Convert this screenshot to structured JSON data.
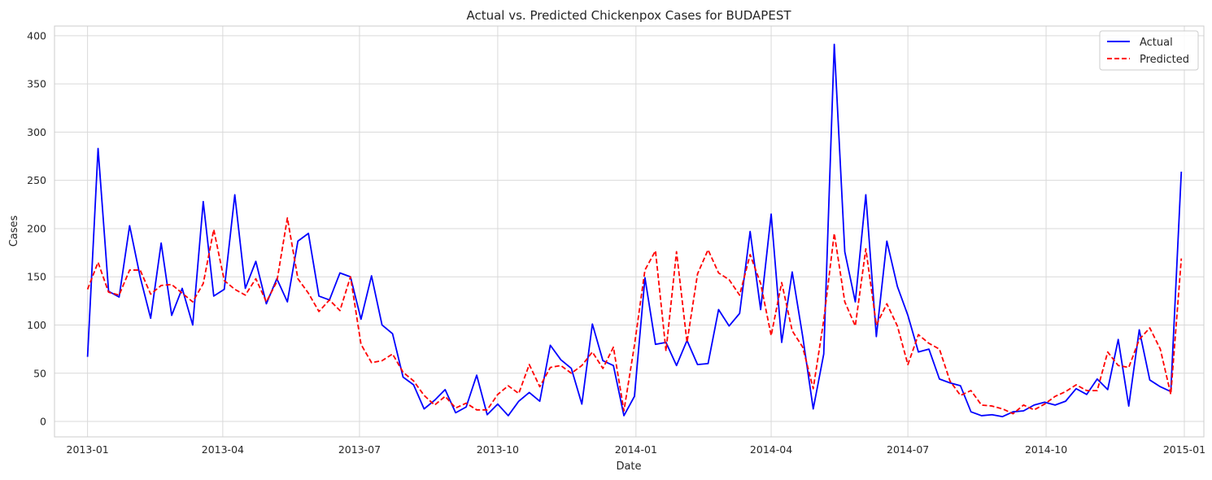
{
  "chart_data": {
    "type": "line",
    "title": "Actual vs. Predicted Chickenpox Cases for BUDAPEST",
    "xlabel": "Date",
    "ylabel": "Cases",
    "grid": true,
    "legend_position": "top-right",
    "xlim": [
      "2012-12-10",
      "2015-01-14"
    ],
    "ylim": [
      -16,
      410
    ],
    "x_ticks": [
      "2013-01-01",
      "2013-04-01",
      "2013-07-01",
      "2013-10-01",
      "2014-01-01",
      "2014-04-01",
      "2014-07-01",
      "2014-10-01",
      "2015-01-01"
    ],
    "x_tick_labels": [
      "2013-01",
      "2013-04",
      "2013-07",
      "2013-10",
      "2014-01",
      "2014-04",
      "2014-07",
      "2014-10",
      "2015-01"
    ],
    "y_ticks": [
      0,
      50,
      100,
      150,
      200,
      250,
      300,
      350,
      400
    ],
    "y_tick_labels": [
      "0",
      "50",
      "100",
      "150",
      "200",
      "250",
      "300",
      "350",
      "400"
    ],
    "x_start": "2013-01-01",
    "x_step_days": 7,
    "series": [
      {
        "name": "Actual",
        "color": "#0000ff",
        "dash": "solid",
        "values": [
          67,
          283,
          135,
          129,
          203,
          150,
          107,
          185,
          110,
          138,
          100,
          228,
          130,
          137,
          235,
          138,
          166,
          122,
          148,
          124,
          187,
          195,
          130,
          126,
          154,
          150,
          106,
          151,
          100,
          91,
          46,
          38,
          13,
          22,
          33,
          9,
          15,
          48,
          7,
          18,
          6,
          21,
          30,
          21,
          79,
          64,
          55,
          18,
          101,
          63,
          58,
          6,
          26,
          149,
          80,
          82,
          58,
          84,
          59,
          60,
          116,
          99,
          112,
          197,
          116,
          215,
          82,
          155,
          88,
          13,
          70,
          391,
          176,
          124,
          235,
          88,
          187,
          140,
          110,
          72,
          75,
          44,
          40,
          37,
          10,
          6,
          7,
          5,
          10,
          11,
          17,
          20,
          17,
          21,
          34,
          28,
          44,
          33,
          85,
          16,
          95,
          43,
          36,
          31,
          259
        ]
      },
      {
        "name": "Predicted",
        "color": "#ff0000",
        "dash": "dashed",
        "values": [
          137,
          165,
          134,
          131,
          157,
          157,
          132,
          141,
          142,
          133,
          124,
          143,
          199,
          146,
          137,
          131,
          148,
          124,
          145,
          211,
          148,
          133,
          114,
          126,
          115,
          150,
          80,
          61,
          63,
          70,
          51,
          42,
          27,
          17,
          26,
          14,
          19,
          12,
          12,
          28,
          37,
          29,
          59,
          36,
          56,
          58,
          50,
          58,
          72,
          55,
          77,
          11,
          79,
          157,
          177,
          73,
          176,
          82,
          153,
          178,
          154,
          147,
          131,
          173,
          143,
          89,
          144,
          94,
          77,
          34,
          105,
          195,
          124,
          99,
          179,
          100,
          122,
          99,
          59,
          90,
          81,
          75,
          42,
          27,
          32,
          17,
          16,
          13,
          8,
          17,
          12,
          18,
          26,
          31,
          38,
          32,
          32,
          72,
          58,
          56,
          85,
          97,
          75,
          28,
          169
        ]
      }
    ]
  }
}
